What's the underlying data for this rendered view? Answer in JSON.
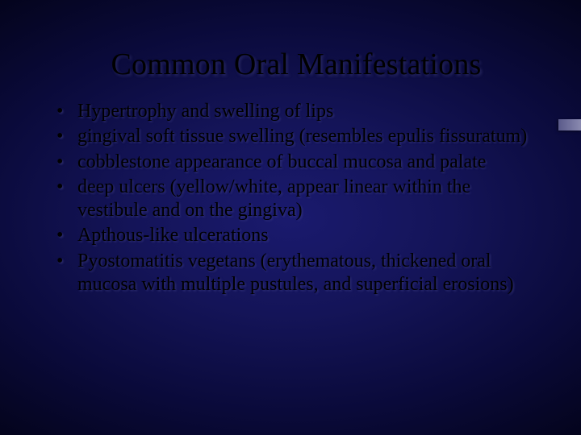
{
  "slide": {
    "title": "Common Oral Manifestations",
    "title_fontsize": 38,
    "bullet_fontsize": 24,
    "text_color": "#000000",
    "shadow_color": "rgba(70,70,140,0.55)",
    "background": {
      "type": "radial-gradient",
      "stops": [
        "#1a1a6e",
        "#141458",
        "#0a0a3a",
        "#030318",
        "#000008"
      ]
    },
    "accent_bar_color_start": "#5a5a8a",
    "accent_bar_color_end": "#8a8ab0",
    "bullets": [
      "Hypertrophy and swelling of lips",
      "gingival soft tissue swelling (resembles epulis fissuratum)",
      "cobblestone appearance of buccal mucosa and palate",
      "deep ulcers (yellow/white, appear linear within the vestibule and on the gingiva)",
      "Apthous-like ulcerations",
      "Pyostomatitis vegetans (erythematous, thickened oral mucosa with multiple pustules, and superficial erosions)"
    ]
  }
}
